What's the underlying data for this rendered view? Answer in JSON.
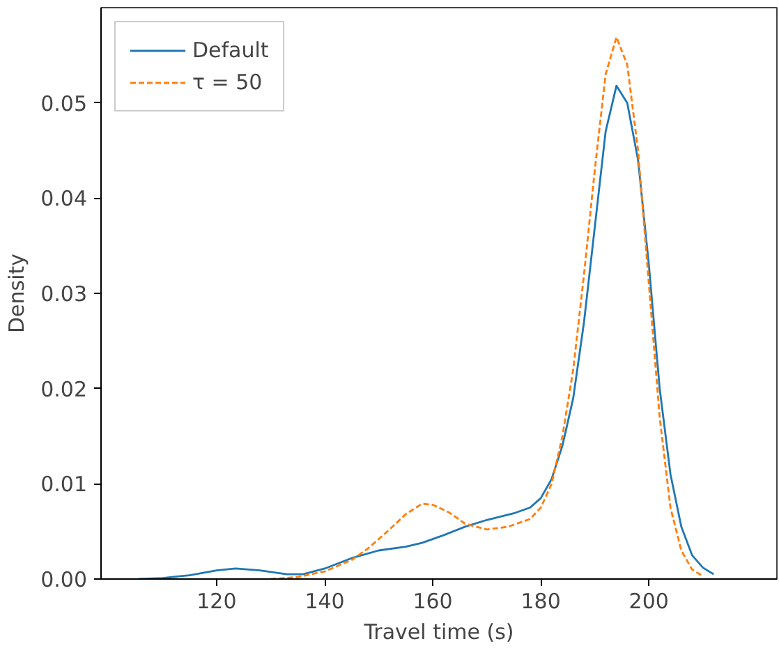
{
  "chart_data": {
    "type": "line",
    "xlabel": "Travel time (s)",
    "ylabel": "Density",
    "xlim": [
      98.6,
      223.7
    ],
    "xticks": [
      120,
      140,
      160,
      180,
      200
    ],
    "ylim": [
      0,
      0.06
    ],
    "yticks": [
      {
        "value": 0,
        "label": "0.00"
      },
      {
        "value": 0.01,
        "label": "0.01"
      },
      {
        "value": 0.02,
        "label": "0.02"
      },
      {
        "value": 0.03,
        "label": "0.03"
      },
      {
        "value": 0.04,
        "label": "0.04"
      },
      {
        "value": 0.05,
        "label": "0.05"
      }
    ],
    "grid": false,
    "legend": "top left",
    "marker": "none",
    "series": [
      {
        "name": "Default",
        "color": "#1f77b4",
        "line_style": "solid",
        "x": [
          105.5,
          110,
          115,
          120,
          123.5,
          128,
          133,
          136,
          140,
          145,
          150,
          155,
          158,
          162,
          166,
          170,
          175,
          178,
          180,
          182,
          184,
          186,
          188,
          190,
          192,
          194,
          196,
          198,
          200,
          202,
          204,
          206,
          208,
          210,
          212
        ],
        "values": [
          0,
          0.0001,
          0.0004,
          0.0009,
          0.0011,
          0.0009,
          0.0005,
          0.0005,
          0.0011,
          0.0022,
          0.003,
          0.0034,
          0.0038,
          0.0046,
          0.0055,
          0.0062,
          0.0069,
          0.0075,
          0.0085,
          0.0105,
          0.014,
          0.019,
          0.027,
          0.037,
          0.047,
          0.0518,
          0.05,
          0.044,
          0.033,
          0.02,
          0.011,
          0.0055,
          0.0025,
          0.0012,
          0.0005
        ]
      },
      {
        "name": "τ = 50",
        "color": "#ff7f0e",
        "line_style": "dashed",
        "x": [
          130,
          135,
          140,
          145,
          148,
          152,
          155,
          158,
          160,
          163,
          166,
          170,
          174,
          178,
          180,
          182,
          184,
          186,
          188,
          190,
          192,
          194,
          196,
          198,
          200,
          202,
          204,
          206,
          208,
          210
        ],
        "values": [
          0,
          0.0002,
          0.0008,
          0.002,
          0.0032,
          0.0052,
          0.0068,
          0.0079,
          0.0078,
          0.007,
          0.0058,
          0.0052,
          0.0055,
          0.0063,
          0.0075,
          0.01,
          0.015,
          0.022,
          0.032,
          0.043,
          0.053,
          0.0569,
          0.054,
          0.045,
          0.031,
          0.017,
          0.0075,
          0.003,
          0.001,
          0.0003
        ]
      }
    ]
  }
}
